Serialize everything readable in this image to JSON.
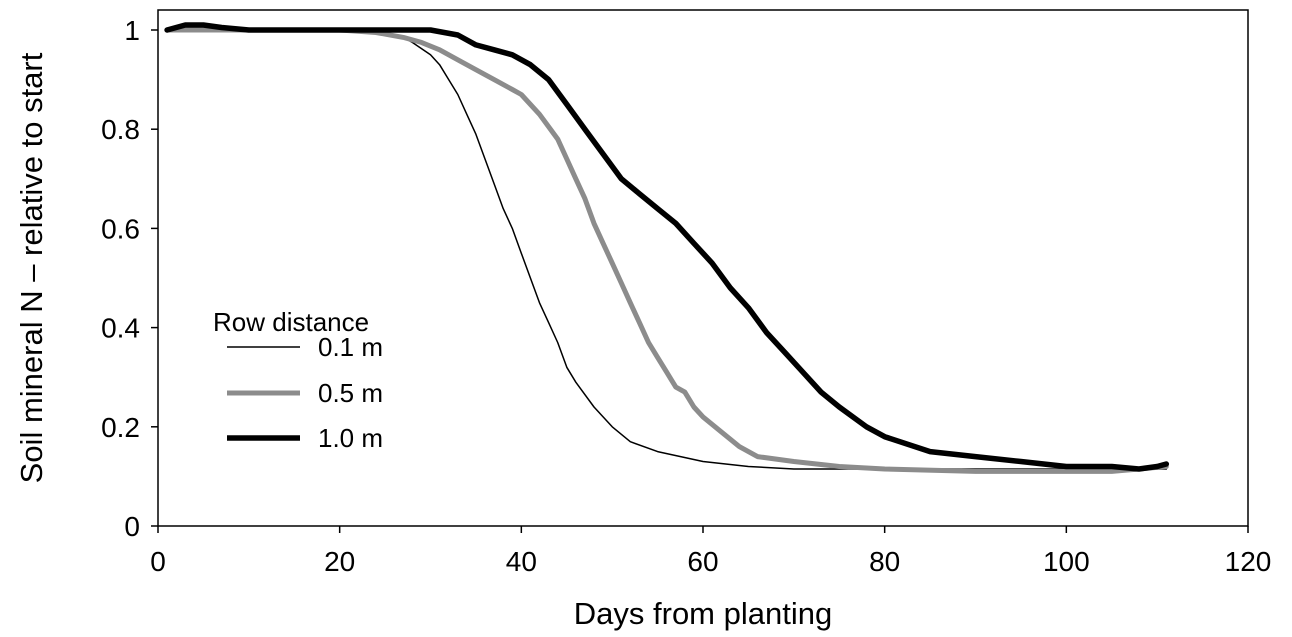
{
  "chart_data": {
    "type": "line",
    "title": "",
    "xlabel": "Days from planting",
    "ylabel": "Soil mineral N – relative to start",
    "xlim": [
      0,
      120
    ],
    "ylim": [
      0,
      1.0
    ],
    "xticks": [
      "0",
      "20",
      "40",
      "60",
      "80",
      "100",
      "120"
    ],
    "yticks": [
      "0",
      "0.2",
      "0.4",
      "0.6",
      "0.8",
      "1"
    ],
    "grid": false,
    "legend": {
      "title": "Row distance",
      "placement": "left-center"
    },
    "colors": {
      "0.1 m": "#000000",
      "0.5 m": "#8c8c8c",
      "1.0 m": "#000000"
    },
    "series": [
      {
        "name": "0.1 m",
        "x": [
          1,
          3,
          10,
          20,
          25,
          27,
          28,
          30,
          31,
          32,
          33,
          34,
          35,
          36,
          37,
          38,
          39,
          40,
          41,
          42,
          43,
          44,
          45,
          46,
          48,
          50,
          52,
          55,
          60,
          65,
          70,
          75,
          80,
          90,
          100,
          105,
          108,
          111
        ],
        "y": [
          1.0,
          1.005,
          1.0,
          1.0,
          0.995,
          0.985,
          0.975,
          0.95,
          0.93,
          0.9,
          0.87,
          0.83,
          0.79,
          0.74,
          0.69,
          0.64,
          0.6,
          0.55,
          0.5,
          0.45,
          0.41,
          0.37,
          0.32,
          0.29,
          0.24,
          0.2,
          0.17,
          0.15,
          0.13,
          0.12,
          0.115,
          0.115,
          0.115,
          0.115,
          0.115,
          0.115,
          0.115,
          0.115
        ]
      },
      {
        "name": "0.5 m",
        "x": [
          1,
          10,
          20,
          24,
          27,
          29,
          31,
          33,
          35,
          37,
          39,
          40,
          42,
          44,
          45,
          46,
          47,
          48,
          49,
          50,
          51,
          52,
          53,
          54,
          55,
          56,
          57,
          58,
          59,
          60,
          62,
          64,
          66,
          70,
          75,
          80,
          90,
          100,
          105,
          108,
          111
        ],
        "y": [
          1.0,
          1.0,
          1.0,
          0.995,
          0.985,
          0.975,
          0.96,
          0.94,
          0.92,
          0.9,
          0.88,
          0.87,
          0.83,
          0.78,
          0.74,
          0.7,
          0.66,
          0.61,
          0.57,
          0.53,
          0.49,
          0.45,
          0.41,
          0.37,
          0.34,
          0.31,
          0.28,
          0.27,
          0.24,
          0.22,
          0.19,
          0.16,
          0.14,
          0.13,
          0.12,
          0.115,
          0.11,
          0.11,
          0.11,
          0.115,
          0.12
        ]
      },
      {
        "name": "1.0 m",
        "x": [
          1,
          3,
          5,
          7,
          10,
          20,
          30,
          33,
          35,
          37,
          39,
          41,
          43,
          45,
          47,
          49,
          51,
          53,
          55,
          57,
          59,
          61,
          63,
          65,
          67,
          69,
          71,
          73,
          75,
          78,
          80,
          85,
          90,
          95,
          100,
          105,
          108,
          110,
          111
        ],
        "y": [
          1.0,
          1.01,
          1.01,
          1.005,
          1.0,
          1.0,
          1.0,
          0.99,
          0.97,
          0.96,
          0.95,
          0.93,
          0.9,
          0.85,
          0.8,
          0.75,
          0.7,
          0.67,
          0.64,
          0.61,
          0.57,
          0.53,
          0.48,
          0.44,
          0.39,
          0.35,
          0.31,
          0.27,
          0.24,
          0.2,
          0.18,
          0.15,
          0.14,
          0.13,
          0.12,
          0.12,
          0.115,
          0.12,
          0.125
        ]
      }
    ]
  }
}
